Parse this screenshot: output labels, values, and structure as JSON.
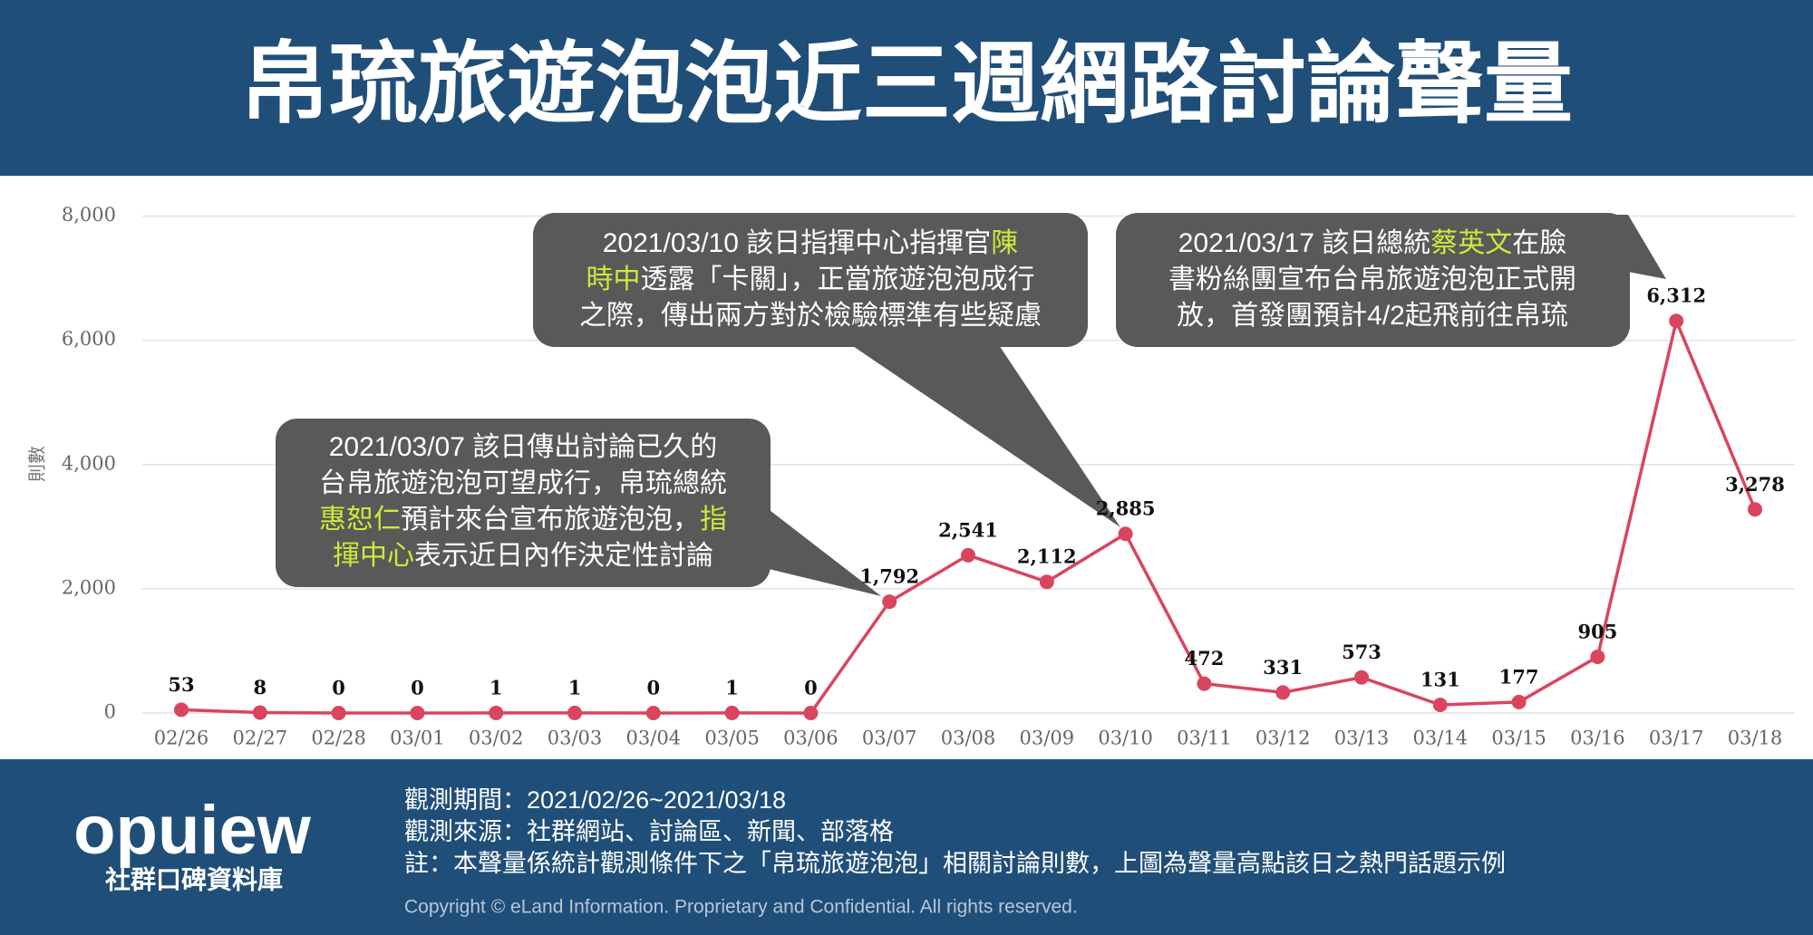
{
  "header": {
    "title": "帛琉旅遊泡泡近三週網路討論聲量"
  },
  "chart_data": {
    "type": "line",
    "y_label": "則數",
    "categories": [
      "02/26",
      "02/27",
      "02/28",
      "03/01",
      "03/02",
      "03/03",
      "03/04",
      "03/05",
      "03/06",
      "03/07",
      "03/08",
      "03/09",
      "03/10",
      "03/11",
      "03/12",
      "03/13",
      "03/14",
      "03/15",
      "03/16",
      "03/17",
      "03/18"
    ],
    "series": [
      {
        "name": "帛琉旅遊泡泡",
        "color": "#d9455f",
        "values": [
          53,
          8,
          0,
          0,
          1,
          1,
          0,
          1,
          0,
          1792,
          2541,
          2112,
          2885,
          472,
          331,
          573,
          131,
          177,
          905,
          6312,
          3278
        ],
        "value_labels": [
          "53",
          "8",
          "0",
          "0",
          "1",
          "1",
          "0",
          "1",
          "0",
          "1,792",
          "2,541",
          "2,112",
          "2,885",
          "472",
          "331",
          "573",
          "131",
          "177",
          "905",
          "6,312",
          "3,278"
        ]
      }
    ],
    "ylim": [
      0,
      8000
    ],
    "yticks": [
      0,
      {
        "value": 2000,
        "label": "2,000"
      },
      {
        "value": 4000,
        "label": "4,000"
      },
      {
        "value": 6000,
        "label": "6,000"
      },
      {
        "value": 8000,
        "label": "8,000"
      }
    ],
    "grid": true,
    "highlight_color": "#cfe83a",
    "annotations": [
      {
        "lines": [
          [
            {
              "text": "2021/03/10  該日指揮中心指揮官"
            },
            {
              "text": "陳",
              "highlight": true
            }
          ],
          [
            {
              "text": "時中",
              "highlight": true
            },
            {
              "text": "透露「卡關」，正當旅遊泡泡成行"
            }
          ],
          [
            {
              "text": "之際，傳出兩方對於檢驗標準有些疑慮"
            }
          ]
        ]
      },
      {
        "lines": [
          [
            {
              "text": "2021/03/17  該日總統"
            },
            {
              "text": "蔡英文",
              "highlight": true
            },
            {
              "text": "在臉"
            }
          ],
          [
            {
              "text": "書粉絲團宣布台帛旅遊泡泡正式開"
            }
          ],
          [
            {
              "text": "放，首發團預計4/2起飛前往帛琉"
            }
          ]
        ]
      },
      {
        "lines": [
          [
            {
              "text": "2021/03/07 該日傳出討論已久的"
            }
          ],
          [
            {
              "text": "台帛旅遊泡泡可望成行，帛琉總統"
            }
          ],
          [
            {
              "text": "惠恕仁",
              "highlight": true
            },
            {
              "text": "預計來台宣布旅遊泡泡，"
            },
            {
              "text": "指",
              "highlight": true
            }
          ],
          [
            {
              "text": "揮中心",
              "highlight": true
            },
            {
              "text": "表示近日內作決定性討論"
            }
          ]
        ]
      }
    ]
  },
  "footer": {
    "logo": "opuiew",
    "logo_subtitle": "社群口碑資料庫",
    "notes": [
      "觀測期間：2021/02/26~2021/03/18",
      "觀測來源：社群網站、討論區、新聞、部落格",
      "註：本聲量係統計觀測條件下之「帛琉旅遊泡泡」相關討論則數，上圖為聲量高點該日之熱門話題示例"
    ],
    "copyright": "Copyright © eLand Information. Proprietary and Confidential. All rights reserved."
  }
}
